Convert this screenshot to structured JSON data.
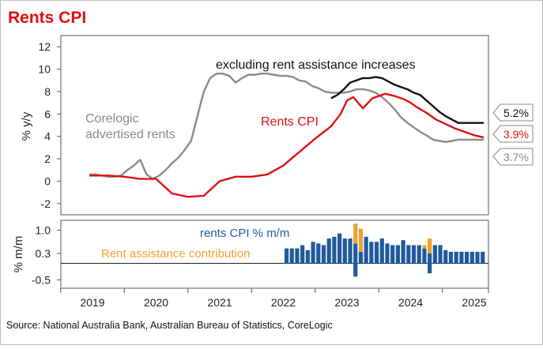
{
  "title": "Rents CPI",
  "source": "Source: National Australia Bank, Australian Bureau of Statistics, CoreLogic",
  "colors": {
    "title": "#e01010",
    "rents_cpi": "#e01010",
    "excl_assist": "#111111",
    "corelogic": "#8a8a8a",
    "bars_mm": "#1f5a9e",
    "bars_assist": "#f0a030"
  },
  "chart_data": [
    {
      "type": "line",
      "ylabel": "% y/y",
      "ylim": [
        -3,
        13
      ],
      "yticks": [
        -2,
        0,
        2,
        4,
        6,
        8,
        10,
        12
      ],
      "grid": false,
      "series": [
        {
          "name": "Corelogic advertised rents",
          "x": [
            2018.95,
            2019.05,
            2019.15,
            2019.25,
            2019.35,
            2019.45,
            2019.55,
            2019.65,
            2019.75,
            2019.85,
            2019.95,
            2020.05,
            2020.15,
            2020.25,
            2020.35,
            2020.45,
            2020.55,
            2020.65,
            2020.75,
            2020.85,
            2020.95,
            2021.05,
            2021.15,
            2021.25,
            2021.35,
            2021.45,
            2021.55,
            2021.65,
            2021.75,
            2021.85,
            2021.95,
            2022.05,
            2022.15,
            2022.25,
            2022.35,
            2022.45,
            2022.55,
            2022.65,
            2022.75,
            2022.85,
            2022.95,
            2023.05,
            2023.15,
            2023.25,
            2023.35,
            2023.45,
            2023.55,
            2023.65,
            2023.75,
            2023.85,
            2023.95,
            2024.05,
            2024.15,
            2024.25,
            2024.35,
            2024.45,
            2024.55,
            2024.65,
            2024.75,
            2024.85,
            2024.95,
            2025.05,
            2025.15
          ],
          "values": [
            0.6,
            0.6,
            0.5,
            0.4,
            0.4,
            0.5,
            1.0,
            1.4,
            1.9,
            0.6,
            0.2,
            0.5,
            1.0,
            1.6,
            2.1,
            2.8,
            3.6,
            5.8,
            8.0,
            9.2,
            9.6,
            9.6,
            9.4,
            8.8,
            9.2,
            9.5,
            9.5,
            9.6,
            9.6,
            9.5,
            9.4,
            9.4,
            9.3,
            9.0,
            8.9,
            8.5,
            8.3,
            8.0,
            7.9,
            7.9,
            7.9,
            8.0,
            8.2,
            8.2,
            8.1,
            7.9,
            7.5,
            7.0,
            6.4,
            5.7,
            5.2,
            4.8,
            4.4,
            4.1,
            3.7,
            3.6,
            3.5,
            3.6,
            3.7,
            3.7,
            3.7,
            3.7,
            3.7
          ]
        },
        {
          "name": "excluding rent assistance increases",
          "x": [
            2022.75,
            2022.85,
            2022.95,
            2023.05,
            2023.15,
            2023.25,
            2023.35,
            2023.45,
            2023.55,
            2023.65,
            2023.75,
            2023.85,
            2023.95,
            2024.05,
            2024.15,
            2024.25,
            2024.35,
            2024.45,
            2024.55,
            2024.65,
            2024.75,
            2024.85,
            2024.95,
            2025.05,
            2025.15
          ],
          "values": [
            7.4,
            7.7,
            8.2,
            8.8,
            9.0,
            9.2,
            9.2,
            9.3,
            9.2,
            8.9,
            8.6,
            8.4,
            8.2,
            7.9,
            7.7,
            7.2,
            6.7,
            6.2,
            5.8,
            5.5,
            5.2,
            5.2,
            5.2,
            5.2,
            5.2
          ]
        },
        {
          "name": "Rents CPI",
          "x": [
            2018.95,
            2019.25,
            2019.5,
            2019.75,
            2020.0,
            2020.25,
            2020.5,
            2020.75,
            2021.0,
            2021.25,
            2021.5,
            2021.75,
            2022.0,
            2022.25,
            2022.5,
            2022.75,
            2022.9,
            2023.0,
            2023.1,
            2023.25,
            2023.4,
            2023.5,
            2023.6,
            2023.75,
            2023.9,
            2024.0,
            2024.1,
            2024.25,
            2024.4,
            2024.55,
            2024.7,
            2024.85,
            2025.0,
            2025.15
          ],
          "values": [
            0.5,
            0.5,
            0.4,
            0.2,
            0.2,
            -1.1,
            -1.4,
            -1.3,
            0.0,
            0.4,
            0.4,
            0.6,
            1.4,
            2.6,
            3.8,
            4.9,
            6.0,
            7.2,
            7.5,
            6.5,
            7.4,
            7.6,
            7.8,
            7.6,
            7.3,
            7.0,
            6.6,
            6.1,
            5.5,
            5.1,
            4.7,
            4.4,
            4.1,
            3.9
          ]
        }
      ],
      "annotations": [
        {
          "text": "excluding rent assistance increases"
        },
        {
          "text": "Rents CPI"
        },
        {
          "text": "Corelogic"
        },
        {
          "text": "advertised rents"
        }
      ],
      "end_labels": [
        "5.2%",
        "3.9%",
        "3.7%"
      ]
    },
    {
      "type": "bar",
      "ylabel": "% m/m",
      "ylim": [
        -0.75,
        1.3
      ],
      "yticks": [
        -0.5,
        0.3,
        1.0
      ],
      "ytick_labels": [
        "-0.5",
        "0.3",
        "1.0"
      ],
      "series": [
        {
          "name": "rents CPI % m/m"
        },
        {
          "name": "Rent assistance contribution"
        }
      ],
      "bars": [
        {
          "x": 2022.05,
          "mm": 0.45,
          "assist": 0
        },
        {
          "x": 2022.1333,
          "mm": 0.45,
          "assist": 0
        },
        {
          "x": 2022.2167,
          "mm": 0.45,
          "assist": 0
        },
        {
          "x": 2022.3,
          "mm": 0.55,
          "assist": 0
        },
        {
          "x": 2022.3833,
          "mm": 0.4,
          "assist": 0
        },
        {
          "x": 2022.4667,
          "mm": 0.65,
          "assist": 0
        },
        {
          "x": 2022.55,
          "mm": 0.6,
          "assist": 0
        },
        {
          "x": 2022.6333,
          "mm": 0.55,
          "assist": 0
        },
        {
          "x": 2022.7167,
          "mm": 0.75,
          "assist": 0
        },
        {
          "x": 2022.8,
          "mm": 0.8,
          "assist": 0
        },
        {
          "x": 2022.8833,
          "mm": 0.9,
          "assist": 0
        },
        {
          "x": 2022.9667,
          "mm": 0.75,
          "assist": 0
        },
        {
          "x": 2023.05,
          "mm": 0.75,
          "assist": 0
        },
        {
          "x": 2023.1333,
          "mm": 0.6,
          "assist": -0.6
        },
        {
          "x": 2023.2167,
          "mm": 0.35,
          "assist": 0.7
        },
        {
          "x": 2023.3,
          "mm": 0.8,
          "assist": 0
        },
        {
          "x": 2023.3833,
          "mm": 0.65,
          "assist": 0
        },
        {
          "x": 2023.4667,
          "mm": 0.65,
          "assist": 0
        },
        {
          "x": 2023.55,
          "mm": 0.75,
          "assist": 0
        },
        {
          "x": 2023.6333,
          "mm": 0.6,
          "assist": 0
        },
        {
          "x": 2023.7167,
          "mm": 0.55,
          "assist": 0
        },
        {
          "x": 2023.8,
          "mm": 0.55,
          "assist": 0
        },
        {
          "x": 2023.8833,
          "mm": 0.7,
          "assist": 0
        },
        {
          "x": 2023.9667,
          "mm": 0.55,
          "assist": 0
        },
        {
          "x": 2024.05,
          "mm": 0.55,
          "assist": 0
        },
        {
          "x": 2024.1333,
          "mm": 0.55,
          "assist": 0
        },
        {
          "x": 2024.2167,
          "mm": 0.45,
          "assist": 0.1
        },
        {
          "x": 2024.3,
          "mm": 0.3,
          "assist": 0.45
        },
        {
          "x": 2024.3833,
          "mm": 0.55,
          "assist": 0
        },
        {
          "x": 2024.4667,
          "mm": 0.55,
          "assist": 0
        },
        {
          "x": 2024.55,
          "mm": 0.4,
          "assist": 0
        },
        {
          "x": 2024.6333,
          "mm": 0.35,
          "assist": 0
        },
        {
          "x": 2024.7167,
          "mm": 0.35,
          "assist": 0
        },
        {
          "x": 2024.8,
          "mm": 0.35,
          "assist": 0
        },
        {
          "x": 2024.8833,
          "mm": 0.35,
          "assist": 0
        },
        {
          "x": 2024.9667,
          "mm": 0.35,
          "assist": 0
        },
        {
          "x": 2025.05,
          "mm": 0.35,
          "assist": 0
        },
        {
          "x": 2025.1333,
          "mm": 0.35,
          "assist": 0
        }
      ],
      "negative_bars": [
        {
          "x": 2023.1333,
          "mm": -0.4
        },
        {
          "x": 2024.3,
          "mm": -0.3
        }
      ]
    }
  ],
  "x_axis": {
    "ticks": [
      "2019",
      "2020",
      "2021",
      "2022",
      "2023",
      "2024",
      "2025"
    ]
  }
}
